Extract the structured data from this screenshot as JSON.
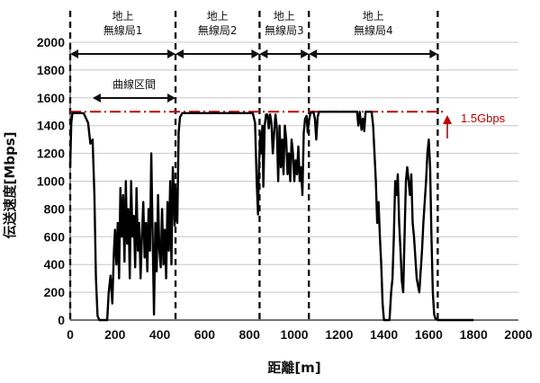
{
  "chart_data": {
    "type": "line",
    "xlabel": "距離[m]",
    "ylabel": "伝送速度[Mbps]",
    "xlim": [
      0,
      2000
    ],
    "ylim": [
      0,
      2000
    ],
    "x_ticks": [
      "0",
      "200",
      "400",
      "600",
      "800",
      "1000",
      "1200",
      "1400",
      "1600",
      "1800",
      "2000"
    ],
    "y_ticks": [
      "0",
      "200",
      "400",
      "600",
      "800",
      "1000",
      "1200",
      "1400",
      "1600",
      "1800",
      "2000"
    ],
    "grid": "horizontal",
    "legend": "none",
    "reference_line": {
      "y": 1500,
      "label": "1.5Gbps",
      "color": "#c00000",
      "style": "dash-dot"
    },
    "stations": [
      {
        "line1": "地上",
        "line2": "無線局1",
        "x_start": 0,
        "x_end": 470
      },
      {
        "line1": "地上",
        "line2": "無線局2",
        "x_start": 470,
        "x_end": 845
      },
      {
        "line1": "地上",
        "line2": "無線局3",
        "x_start": 845,
        "x_end": 1065
      },
      {
        "line1": "地上",
        "line2": "無線局4",
        "x_start": 1065,
        "x_end": 1640
      }
    ],
    "curve_section": {
      "label": "曲線区間",
      "x_start": 100,
      "x_end": 470
    },
    "series": [
      {
        "color": "#000000",
        "points": [
          [
            0,
            1100
          ],
          [
            5,
            1420
          ],
          [
            10,
            1490
          ],
          [
            60,
            1490
          ],
          [
            80,
            1420
          ],
          [
            90,
            1270
          ],
          [
            100,
            1300
          ],
          [
            108,
            900
          ],
          [
            115,
            300
          ],
          [
            122,
            30
          ],
          [
            130,
            0
          ],
          [
            165,
            0
          ],
          [
            172,
            200
          ],
          [
            180,
            320
          ],
          [
            188,
            120
          ],
          [
            195,
            500
          ],
          [
            200,
            650
          ],
          [
            206,
            400
          ],
          [
            212,
            700
          ],
          [
            218,
            300
          ],
          [
            224,
            950
          ],
          [
            230,
            600
          ],
          [
            236,
            900
          ],
          [
            242,
            420
          ],
          [
            248,
            1000
          ],
          [
            254,
            550
          ],
          [
            260,
            800
          ],
          [
            266,
            300
          ],
          [
            272,
            1000
          ],
          [
            278,
            600
          ],
          [
            284,
            750
          ],
          [
            290,
            380
          ],
          [
            296,
            950
          ],
          [
            302,
            500
          ],
          [
            308,
            700
          ],
          [
            314,
            300
          ],
          [
            320,
            600
          ],
          [
            326,
            850
          ],
          [
            332,
            450
          ],
          [
            338,
            700
          ],
          [
            344,
            350
          ],
          [
            350,
            800
          ],
          [
            356,
            500
          ],
          [
            362,
            1200
          ],
          [
            368,
            600
          ],
          [
            374,
            40
          ],
          [
            380,
            700
          ],
          [
            386,
            350
          ],
          [
            392,
            900
          ],
          [
            398,
            500
          ],
          [
            404,
            380
          ],
          [
            410,
            800
          ],
          [
            416,
            400
          ],
          [
            422,
            650
          ],
          [
            428,
            300
          ],
          [
            434,
            850
          ],
          [
            440,
            500
          ],
          [
            446,
            1000
          ],
          [
            452,
            400
          ],
          [
            458,
            1100
          ],
          [
            462,
            950
          ],
          [
            466,
            680
          ],
          [
            470,
            950
          ],
          [
            478,
            700
          ],
          [
            484,
            1350
          ],
          [
            490,
            1460
          ],
          [
            500,
            1490
          ],
          [
            815,
            1490
          ],
          [
            825,
            1420
          ],
          [
            832,
            1000
          ],
          [
            838,
            760
          ],
          [
            842,
            1100
          ],
          [
            848,
            1350
          ],
          [
            852,
            1200
          ],
          [
            858,
            1400
          ],
          [
            862,
            960
          ],
          [
            868,
            1400
          ],
          [
            874,
            1480
          ],
          [
            880,
            1480
          ],
          [
            886,
            1380
          ],
          [
            892,
            1480
          ],
          [
            898,
            1420
          ],
          [
            904,
            1200
          ],
          [
            910,
            1350
          ],
          [
            916,
            1480
          ],
          [
            922,
            1380
          ],
          [
            928,
            1000
          ],
          [
            934,
            1400
          ],
          [
            940,
            1100
          ],
          [
            946,
            1300
          ],
          [
            952,
            1050
          ],
          [
            958,
            1400
          ],
          [
            964,
            1300
          ],
          [
            970,
            1050
          ],
          [
            976,
            1200
          ],
          [
            982,
            1000
          ],
          [
            988,
            1300
          ],
          [
            994,
            1200
          ],
          [
            1000,
            1000
          ],
          [
            1006,
            1150
          ],
          [
            1012,
            1050
          ],
          [
            1018,
            1250
          ],
          [
            1024,
            1000
          ],
          [
            1030,
            1100
          ],
          [
            1036,
            900
          ],
          [
            1042,
            1350
          ],
          [
            1048,
            1450
          ],
          [
            1055,
            1470
          ],
          [
            1060,
            1350
          ],
          [
            1066,
            1440
          ],
          [
            1072,
            1490
          ],
          [
            1085,
            1500
          ],
          [
            1092,
            1450
          ],
          [
            1098,
            1300
          ],
          [
            1104,
            1460
          ],
          [
            1110,
            1500
          ],
          [
            1280,
            1500
          ],
          [
            1286,
            1400
          ],
          [
            1292,
            1500
          ],
          [
            1300,
            1370
          ],
          [
            1306,
            1450
          ],
          [
            1312,
            1360
          ],
          [
            1318,
            1500
          ],
          [
            1345,
            1500
          ],
          [
            1352,
            1400
          ],
          [
            1358,
            1200
          ],
          [
            1364,
            1000
          ],
          [
            1370,
            700
          ],
          [
            1376,
            850
          ],
          [
            1382,
            600
          ],
          [
            1388,
            400
          ],
          [
            1394,
            120
          ],
          [
            1400,
            0
          ],
          [
            1425,
            0
          ],
          [
            1432,
            200
          ],
          [
            1438,
            300
          ],
          [
            1444,
            600
          ],
          [
            1450,
            1000
          ],
          [
            1456,
            900
          ],
          [
            1462,
            1050
          ],
          [
            1468,
            700
          ],
          [
            1474,
            500
          ],
          [
            1480,
            280
          ],
          [
            1486,
            200
          ],
          [
            1492,
            600
          ],
          [
            1498,
            1000
          ],
          [
            1504,
            1100
          ],
          [
            1510,
            1000
          ],
          [
            1516,
            900
          ],
          [
            1522,
            1050
          ],
          [
            1528,
            700
          ],
          [
            1534,
            600
          ],
          [
            1540,
            450
          ],
          [
            1546,
            300
          ],
          [
            1552,
            250
          ],
          [
            1558,
            200
          ],
          [
            1564,
            350
          ],
          [
            1570,
            500
          ],
          [
            1576,
            700
          ],
          [
            1582,
            850
          ],
          [
            1588,
            1000
          ],
          [
            1594,
            1200
          ],
          [
            1600,
            1300
          ],
          [
            1606,
            1100
          ],
          [
            1612,
            600
          ],
          [
            1618,
            200
          ],
          [
            1624,
            40
          ],
          [
            1630,
            10
          ],
          [
            1640,
            0
          ],
          [
            1700,
            0
          ],
          [
            1800,
            0
          ]
        ]
      }
    ]
  }
}
